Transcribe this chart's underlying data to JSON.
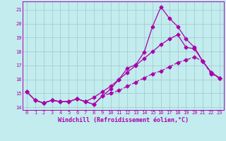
{
  "xlabel": "Windchill (Refroidissement éolien,°C)",
  "bg_color": "#c2ecee",
  "line_color": "#aa00aa",
  "grid_color": "#a0c8cc",
  "xlim": [
    -0.5,
    23.5
  ],
  "ylim": [
    13.8,
    21.6
  ],
  "yticks": [
    14,
    15,
    16,
    17,
    18,
    19,
    20,
    21
  ],
  "xticks": [
    0,
    1,
    2,
    3,
    4,
    5,
    6,
    7,
    8,
    9,
    10,
    11,
    12,
    13,
    14,
    15,
    16,
    17,
    18,
    19,
    20,
    21,
    22,
    23
  ],
  "line1_x": [
    0,
    1,
    2,
    3,
    4,
    5,
    6,
    7,
    8,
    9,
    10,
    11,
    12,
    13,
    14,
    15,
    16,
    17,
    18,
    19,
    20,
    21,
    22,
    23
  ],
  "line1_y": [
    15.1,
    14.5,
    14.3,
    14.5,
    14.4,
    14.4,
    14.6,
    14.4,
    14.2,
    14.8,
    15.3,
    16.0,
    16.8,
    17.05,
    17.95,
    19.8,
    21.2,
    20.4,
    19.8,
    18.9,
    18.3,
    17.3,
    16.5,
    16.1
  ],
  "line2_x": [
    0,
    1,
    2,
    3,
    4,
    5,
    6,
    7,
    8,
    9,
    10,
    11,
    12,
    13,
    14,
    15,
    16,
    17,
    18,
    19,
    20,
    21,
    22,
    23
  ],
  "line2_y": [
    15.1,
    14.5,
    14.3,
    14.5,
    14.4,
    14.4,
    14.6,
    14.4,
    14.7,
    15.1,
    15.5,
    16.0,
    16.5,
    17.0,
    17.5,
    18.0,
    18.5,
    18.9,
    19.2,
    18.3,
    18.2,
    17.3,
    16.5,
    16.1
  ],
  "line3_x": [
    0,
    1,
    2,
    3,
    4,
    5,
    6,
    7,
    8,
    9,
    10,
    11,
    12,
    13,
    14,
    15,
    16,
    17,
    18,
    19,
    20,
    21,
    22,
    23
  ],
  "line3_y": [
    15.1,
    14.5,
    14.3,
    14.5,
    14.4,
    14.4,
    14.6,
    14.4,
    14.2,
    14.8,
    15.0,
    15.2,
    15.5,
    15.8,
    16.1,
    16.4,
    16.6,
    16.9,
    17.2,
    17.4,
    17.6,
    17.3,
    16.4,
    16.1
  ],
  "marker_size": 2.5,
  "linewidth": 0.9,
  "tick_fontsize": 5.0,
  "label_fontsize": 6.0
}
